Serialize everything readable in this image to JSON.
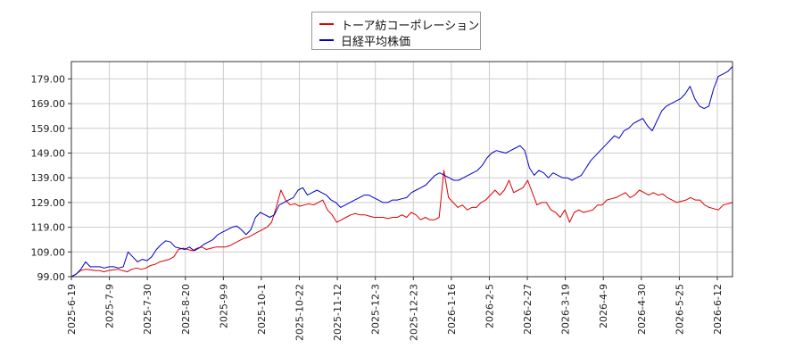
{
  "chart_data": {
    "type": "line",
    "legend": {
      "position": "top-center"
    },
    "grid": true,
    "series": [
      {
        "name": "トーア紡コーポレーション",
        "color": "#dd0000",
        "values": [
          99.0,
          100.0,
          101.5,
          102.0,
          101.8,
          101.5,
          101.5,
          101.0,
          101.5,
          101.8,
          102.0,
          101.5,
          101.0,
          102.0,
          102.5,
          102.0,
          102.5,
          103.5,
          104.0,
          105.0,
          105.5,
          106.0,
          107.0,
          110.0,
          110.5,
          110.0,
          109.5,
          110.5,
          111.0,
          110.0,
          110.5,
          111.0,
          111.0,
          111.0,
          111.5,
          112.5,
          113.5,
          114.5,
          115.0,
          116.0,
          117.0,
          118.0,
          119.0,
          121.0,
          127.0,
          134.0,
          130.0,
          128.0,
          128.5,
          127.5,
          128.0,
          128.5,
          128.0,
          129.0,
          130.0,
          126.0,
          124.0,
          121.0,
          122.0,
          123.0,
          124.0,
          124.5,
          124.0,
          124.0,
          123.5,
          123.0,
          123.0,
          123.0,
          122.5,
          123.0,
          123.0,
          124.0,
          123.0,
          125.0,
          124.0,
          122.0,
          123.0,
          122.0,
          122.0,
          123.0,
          142.0,
          131.0,
          129.0,
          127.0,
          128.0,
          126.0,
          127.0,
          127.0,
          129.0,
          130.0,
          132.0,
          134.0,
          132.0,
          134.0,
          138.0,
          133.0,
          134.0,
          135.0,
          138.0,
          133.0,
          128.0,
          129.0,
          129.0,
          126.0,
          125.0,
          123.0,
          126.0,
          121.0,
          125.0,
          126.0,
          125.0,
          125.5,
          126.0,
          128.0,
          128.0,
          130.0,
          130.5,
          131.0,
          132.0,
          133.0,
          131.0,
          132.0,
          134.0,
          133.0,
          132.0,
          133.0,
          132.0,
          132.5,
          131.0,
          130.0,
          129.0,
          129.5,
          130.0,
          131.0,
          130.0,
          130.0,
          128.0,
          127.0,
          126.5,
          126.0,
          128.0,
          128.5,
          129.0
        ]
      },
      {
        "name": "日経平均株価",
        "color": "#0000cc",
        "values": [
          99.0,
          100.0,
          102.0,
          105.0,
          103.0,
          103.0,
          103.0,
          102.5,
          103.0,
          103.0,
          102.5,
          103.0,
          109.0,
          107.0,
          105.0,
          106.0,
          105.5,
          107.0,
          110.0,
          112.0,
          113.5,
          113.0,
          111.0,
          110.5,
          110.0,
          111.0,
          109.5,
          110.5,
          112.0,
          113.0,
          114.0,
          116.0,
          117.0,
          118.0,
          119.0,
          119.5,
          118.0,
          116.0,
          118.0,
          123.0,
          125.0,
          124.0,
          123.0,
          124.0,
          128.0,
          129.0,
          130.0,
          131.0,
          134.0,
          135.0,
          132.0,
          133.0,
          134.0,
          133.0,
          132.0,
          130.0,
          129.0,
          127.0,
          128.0,
          129.0,
          130.0,
          131.0,
          132.0,
          132.0,
          131.0,
          130.0,
          129.0,
          129.0,
          130.0,
          130.0,
          130.5,
          131.0,
          133.0,
          134.0,
          135.0,
          136.0,
          138.0,
          140.0,
          141.0,
          140.0,
          139.0,
          138.0,
          138.0,
          139.0,
          140.0,
          141.0,
          142.0,
          144.0,
          147.0,
          149.0,
          150.0,
          149.5,
          149.0,
          150.0,
          151.0,
          152.0,
          150.0,
          143.0,
          140.0,
          142.0,
          141.0,
          139.0,
          141.0,
          140.0,
          139.0,
          139.0,
          138.0,
          139.0,
          140.0,
          143.0,
          146.0,
          148.0,
          150.0,
          152.0,
          154.0,
          156.0,
          155.0,
          158.0,
          159.0,
          161.0,
          162.0,
          163.0,
          160.0,
          158.0,
          162.0,
          166.0,
          168.0,
          169.0,
          170.0,
          171.0,
          173.0,
          176.0,
          171.0,
          168.0,
          167.0,
          168.0,
          175.0,
          180.0,
          181.0,
          182.0,
          184.0
        ]
      }
    ],
    "x_ticks": [
      "2025-6-19",
      "2025-7-9",
      "2025-7-30",
      "2025-8-20",
      "2025-9-9",
      "2025-10-1",
      "2025-10-22",
      "2025-11-12",
      "2025-12-3",
      "2025-12-23",
      "2026-1-16",
      "2026-2-5",
      "2026-2-27",
      "2026-3-19",
      "2026-4-9",
      "2026-4-30",
      "2026-5-25",
      "2026-6-12"
    ],
    "y_ticks": [
      "99.00",
      "109.00",
      "119.00",
      "129.00",
      "139.00",
      "149.00",
      "159.00",
      "169.00",
      "179.00"
    ],
    "ylim": [
      99.0,
      186.0
    ]
  }
}
